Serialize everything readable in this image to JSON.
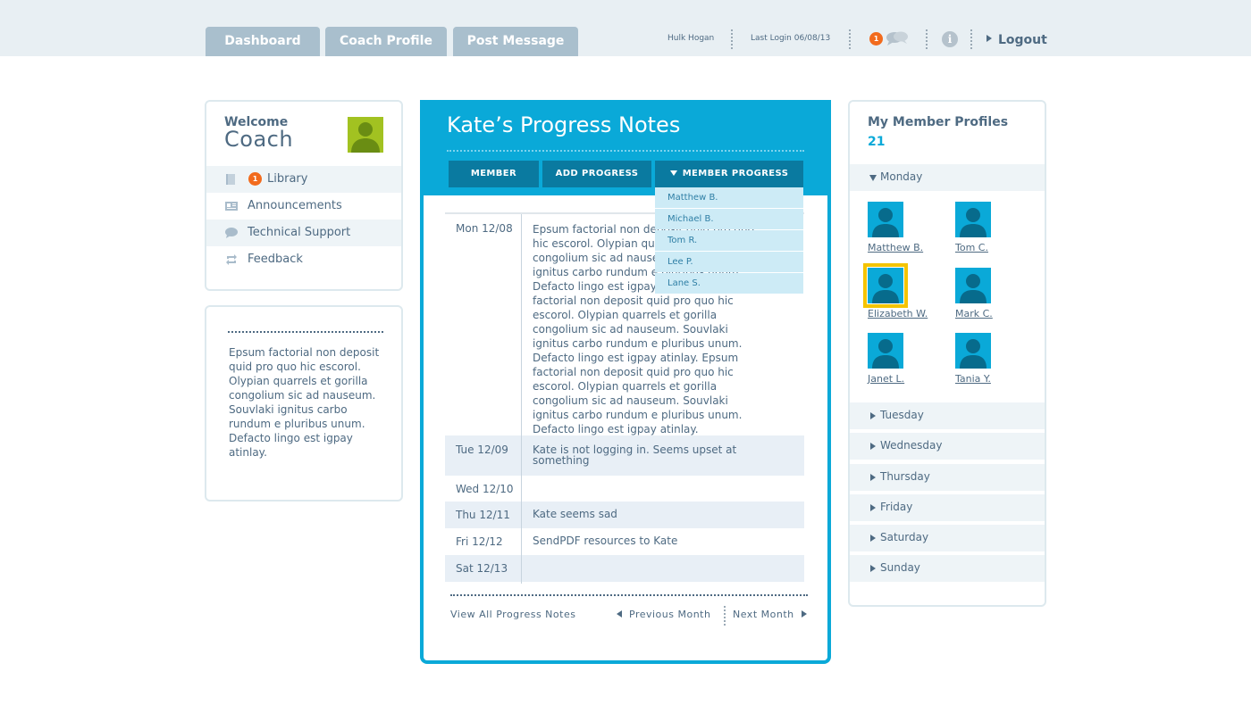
{
  "topbar": {
    "tabs": [
      "Dashboard",
      "Coach Profile",
      "Post Message"
    ],
    "user": "Hulk Hogan",
    "last_login": "Last Login 06/08/13",
    "notification_count": "1",
    "info": "i",
    "logout": "Logout"
  },
  "sidebar": {
    "welcome": "Welcome",
    "coach": "Coach",
    "items": [
      {
        "label": "Library",
        "badge": "1",
        "icon": "book-icon"
      },
      {
        "label": "Announcements",
        "icon": "newspaper-icon"
      },
      {
        "label": "Technical Support",
        "icon": "speech-bubble-icon"
      },
      {
        "label": "Feedback",
        "icon": "refresh-icon"
      }
    ],
    "blurb": "Epsum factorial non deposit quid pro quo hic escorol. Olypian quarrels et gorilla congolium sic ad nauseum. Souvlaki ignitus carbo rundum e pluribus unum. Defacto lingo est igpay atinlay."
  },
  "notes": {
    "title": "Kate’s Progress Notes",
    "tabs": [
      "MEMBER PROFILE",
      "ADD PROGRESS NOTE",
      "MEMBER PROGRESS NOTES"
    ],
    "dropdown": [
      "Matthew B.",
      "Michael B.",
      "Tom R.",
      "Lee P.",
      "Lane S."
    ],
    "rows": [
      {
        "date": "Mon 12/08",
        "text": "Epsum factorial non deposit quid pro quo hic escorol. Olypian quarrels et gorilla congolium sic ad nauseum. Souvlaki ignitus carbo rundum e pluribus unum. Defacto lingo est igpay atinlay. Epsum factorial non deposit quid pro quo hic escorol. Olypian quarrels et gorilla congolium sic ad nauseum. Souvlaki ignitus carbo rundum e pluribus unum. Defacto lingo est igpay atinlay. Epsum factorial non deposit quid pro quo hic escorol. Olypian quarrels et gorilla congolium sic ad nauseum. Souvlaki ignitus carbo rundum e pluribus unum. Defacto lingo est igpay atinlay."
      },
      {
        "date": "Tue 12/09",
        "text": "Kate is not logging in. Seems upset at something"
      },
      {
        "date": "Wed 12/10",
        "text": ""
      },
      {
        "date": "Thu 12/11",
        "text": "Kate seems sad"
      },
      {
        "date": "Fri 12/12",
        "text": "SendPDF resources to Kate"
      },
      {
        "date": "Sat 12/13",
        "text": ""
      }
    ],
    "view_all": "View All Progress Notes",
    "prev": "Previous Month",
    "next": "Next Month"
  },
  "members": {
    "title": "My Member Profiles",
    "count": "21",
    "open_day": "Monday",
    "people": [
      "Matthew B.",
      "Tom C.",
      "Elizabeth W.",
      "Mark C.",
      "Janet L.",
      "Tania Y."
    ],
    "other_days": [
      "Tuesday",
      "Wednesday",
      "Thursday",
      "Friday",
      "Saturday",
      "Sunday"
    ]
  },
  "colors": {
    "accent": "#0aa9d8",
    "dark_tab": "#0a7aa0",
    "badge": "#f26b1d",
    "highlight": "#f5c400",
    "text": "#4e6a82"
  }
}
